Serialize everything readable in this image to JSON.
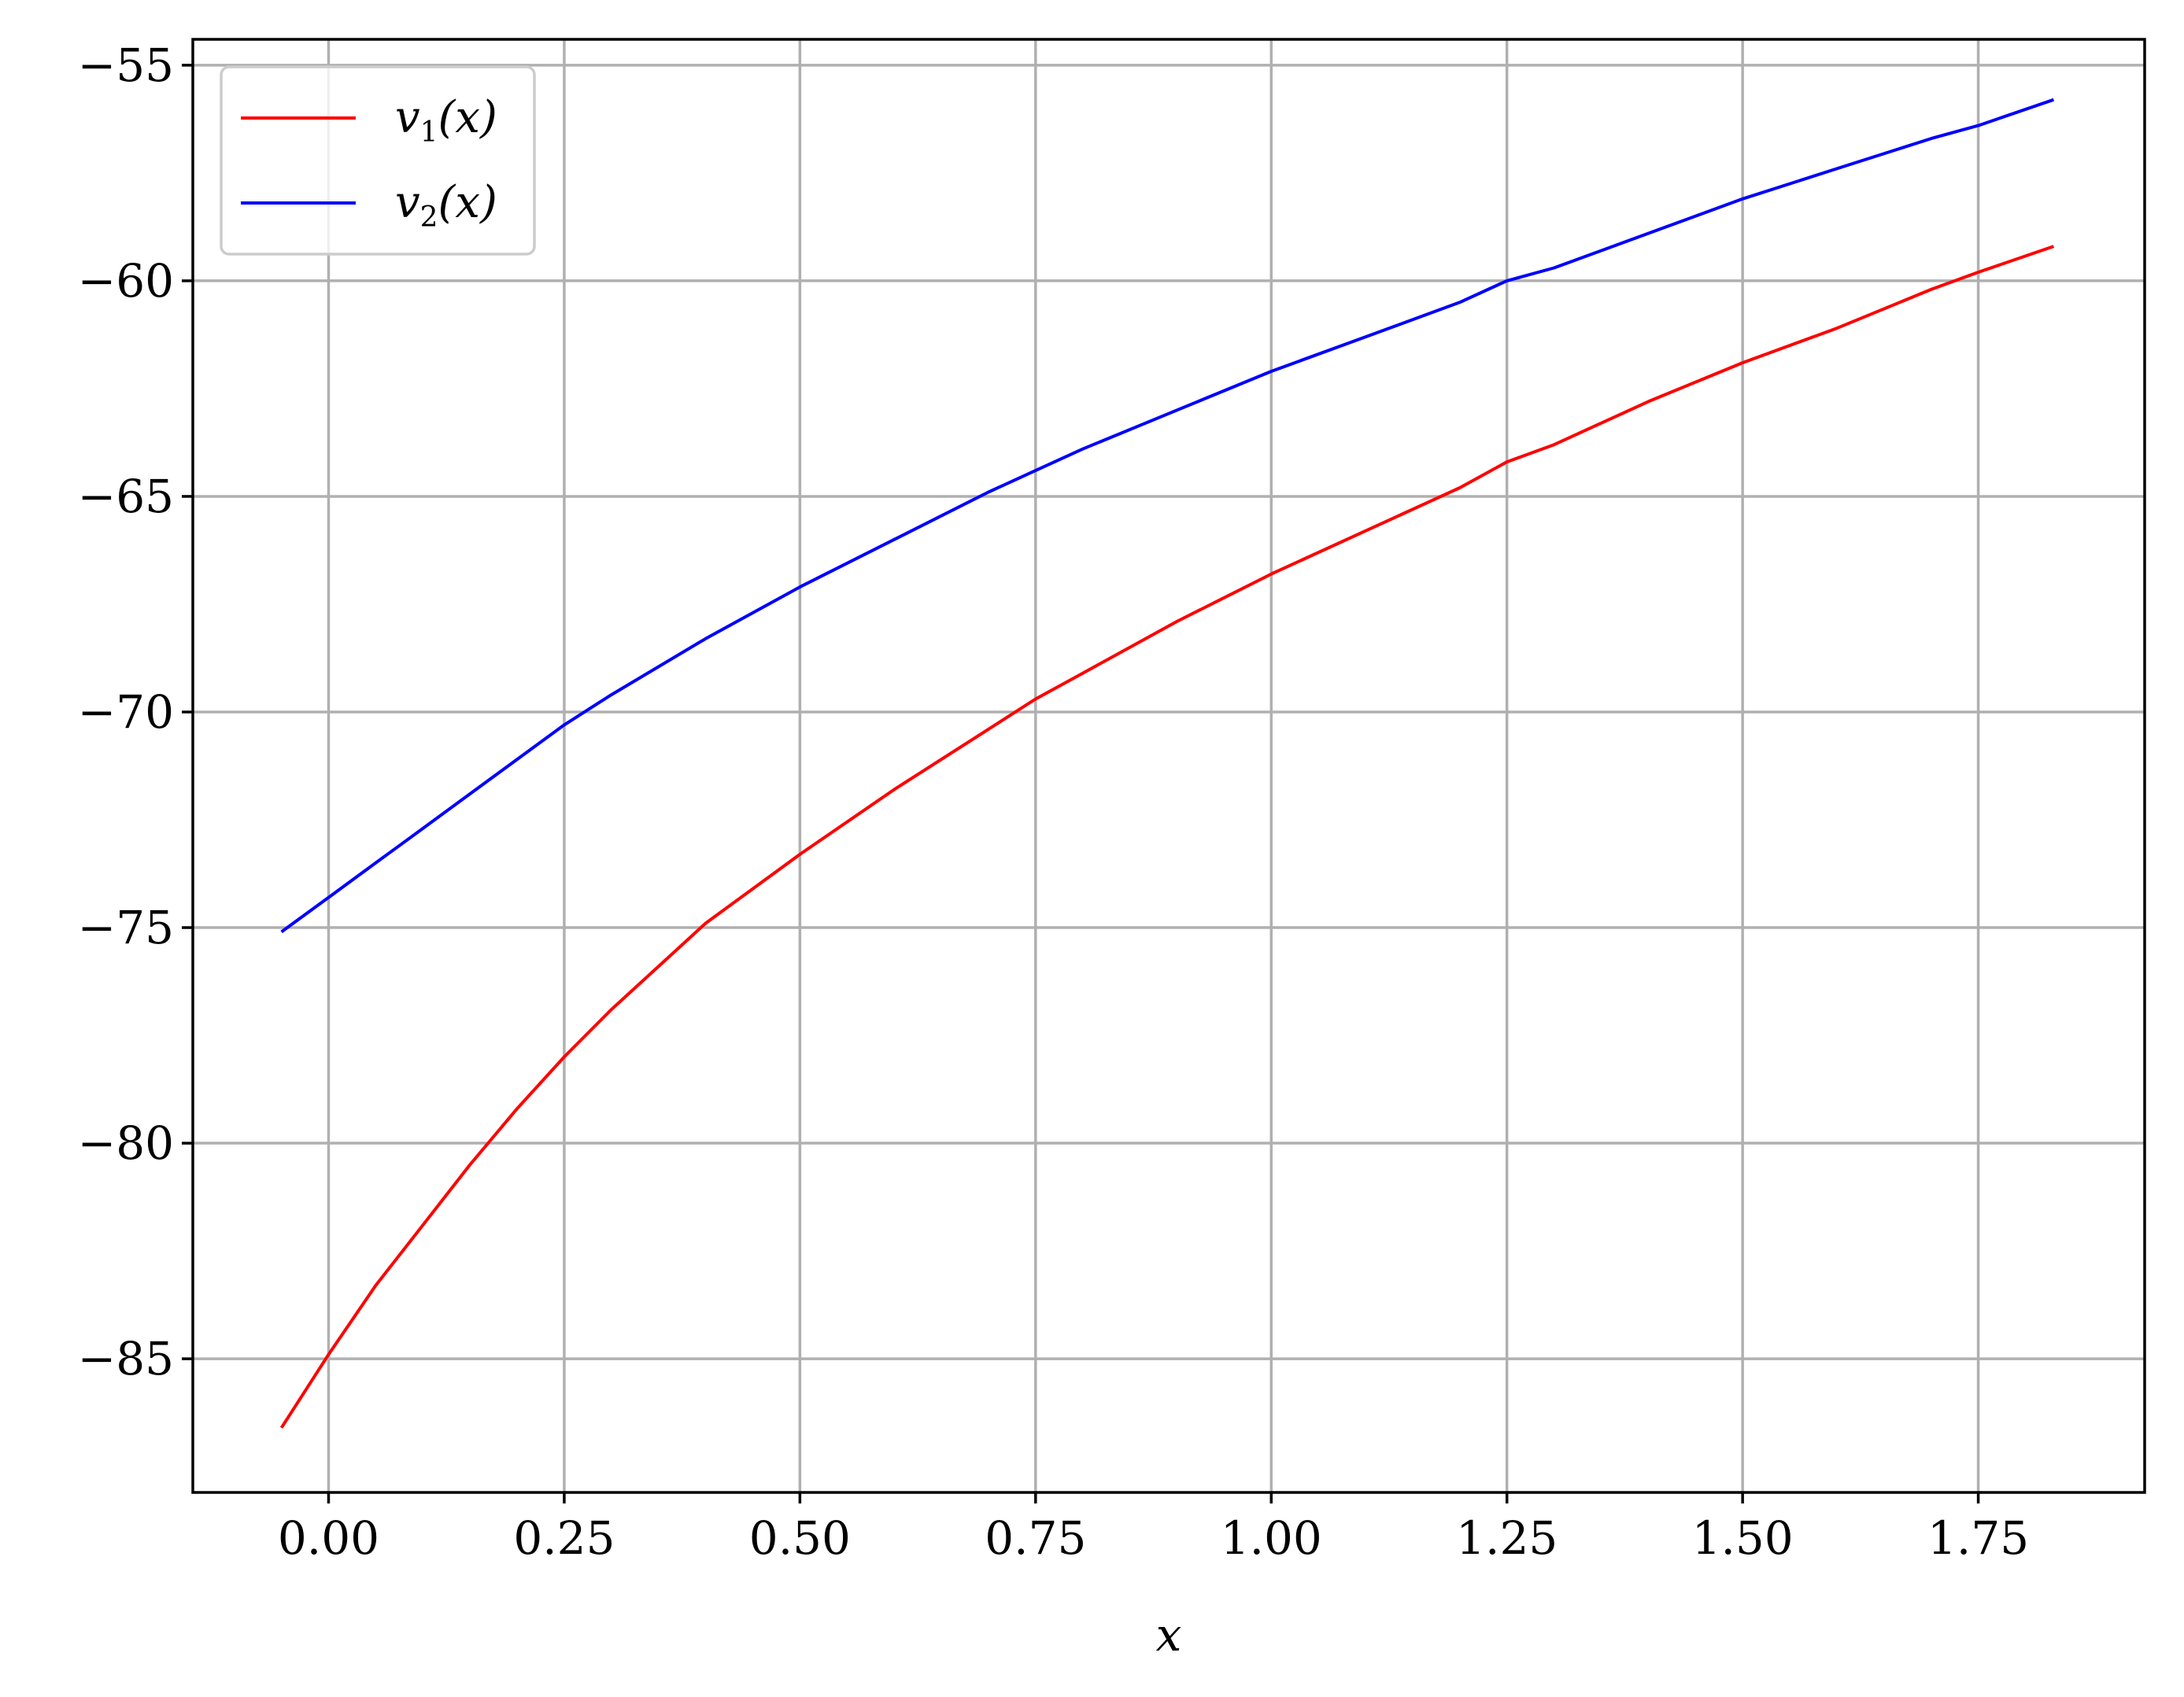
{
  "chart_data": {
    "type": "line",
    "xlabel": "x",
    "ylabel": "",
    "title": "",
    "xlim": [
      -0.144,
      1.9265
    ],
    "ylim": [
      -88.1,
      -54.4
    ],
    "x_ticks": [
      0.0,
      0.25,
      0.5,
      0.75,
      1.0,
      1.25,
      1.5,
      1.75
    ],
    "x_tick_labels": [
      "0.00",
      "0.25",
      "0.50",
      "0.75",
      "1.00",
      "1.25",
      "1.50",
      "1.75"
    ],
    "y_ticks": [
      -85,
      -80,
      -75,
      -70,
      -65,
      -60,
      -55
    ],
    "y_tick_labels": [
      "−85",
      "−80",
      "−75",
      "−70",
      "−65",
      "−60",
      "−55"
    ],
    "grid": true,
    "legend_position": "top-left",
    "series": [
      {
        "name": "v1(x)",
        "legend_main": "v",
        "legend_sub": "1",
        "legend_tail": "(x)",
        "color": "#ff0000",
        "x": [
          -0.05,
          0.0,
          0.05,
          0.1,
          0.15,
          0.2,
          0.25,
          0.3,
          0.35,
          0.4,
          0.5,
          0.6,
          0.7,
          0.75,
          0.8,
          0.9,
          1.0,
          1.1,
          1.2,
          1.25,
          1.3,
          1.4,
          1.5,
          1.6,
          1.7,
          1.75,
          1.83
        ],
        "y": [
          -86.6,
          -84.9,
          -83.3,
          -81.9,
          -80.5,
          -79.2,
          -78.0,
          -76.9,
          -75.9,
          -74.9,
          -73.3,
          -71.8,
          -70.4,
          -69.7,
          -69.1,
          -67.9,
          -66.8,
          -65.8,
          -64.8,
          -64.2,
          -63.8,
          -62.8,
          -61.9,
          -61.1,
          -60.2,
          -59.8,
          -59.2
        ]
      },
      {
        "name": "v2(x)",
        "legend_main": "v",
        "legend_sub": "2",
        "legend_tail": "(x)",
        "color": "#0000ff",
        "x": [
          -0.05,
          0.0,
          0.05,
          0.1,
          0.15,
          0.2,
          0.25,
          0.3,
          0.4,
          0.5,
          0.6,
          0.7,
          0.75,
          0.8,
          0.9,
          1.0,
          1.1,
          1.2,
          1.25,
          1.3,
          1.4,
          1.5,
          1.6,
          1.7,
          1.75,
          1.83
        ],
        "y": [
          -75.1,
          -74.3,
          -73.5,
          -72.7,
          -71.9,
          -71.1,
          -70.3,
          -69.6,
          -68.3,
          -67.1,
          -66.0,
          -64.9,
          -64.4,
          -63.9,
          -63.0,
          -62.1,
          -61.3,
          -60.5,
          -60.0,
          -59.7,
          -58.9,
          -58.1,
          -57.4,
          -56.7,
          -56.4,
          -55.8
        ]
      }
    ]
  }
}
